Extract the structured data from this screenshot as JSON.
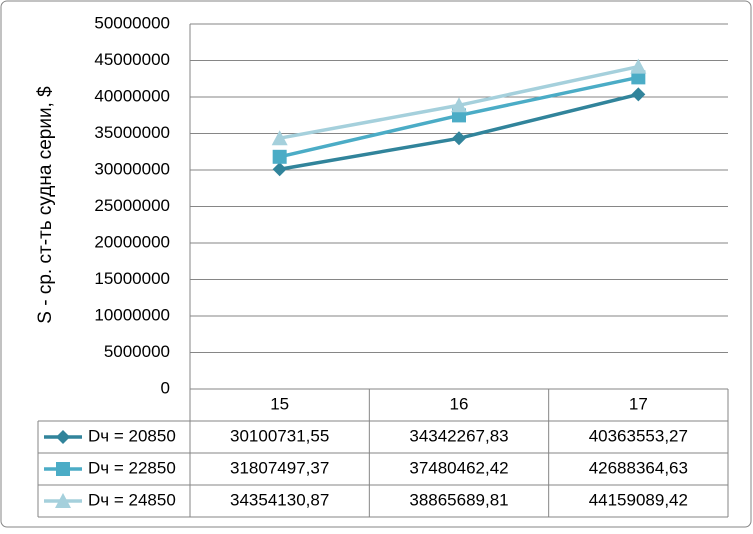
{
  "chart_data": {
    "type": "line",
    "y_label": "S - ср. ст-ть судна серии, $",
    "categories": [
      "15",
      "16",
      "17"
    ],
    "series": [
      {
        "name": "Dч = 20850",
        "color": "#31849b",
        "marker": "diamond",
        "values": [
          30100731.55,
          34342267.83,
          40363553.27
        ],
        "value_labels": [
          "30100731,55",
          "34342267,83",
          "40363553,27"
        ]
      },
      {
        "name": "Dч = 22850",
        "color": "#4bacc6",
        "marker": "square",
        "values": [
          31807497.37,
          37480462.42,
          42688364.63
        ],
        "value_labels": [
          "31807497,37",
          "37480462,42",
          "42688364,63"
        ]
      },
      {
        "name": "Dч = 24850",
        "color": "#a5d0dc",
        "marker": "triangle",
        "values": [
          34354130.87,
          38865689.81,
          44159089.42
        ],
        "value_labels": [
          "34354130,87",
          "38865689,81",
          "44159089,42"
        ]
      }
    ],
    "ylim": [
      0,
      50000000
    ],
    "yticks": [
      0,
      5000000,
      10000000,
      15000000,
      20000000,
      25000000,
      30000000,
      35000000,
      40000000,
      45000000,
      50000000
    ],
    "grid": true
  }
}
